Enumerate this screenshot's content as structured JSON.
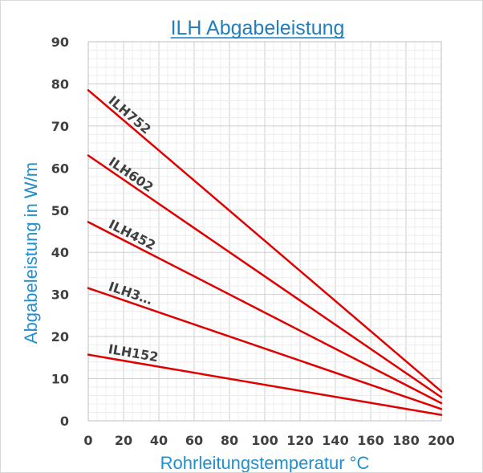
{
  "chart_data": {
    "type": "line",
    "title": "ILH Abgabeleistung",
    "xlabel": "Rohrleitungstemperatur °C",
    "ylabel": "Abgabeleistung in W/m",
    "xlim": [
      0,
      200
    ],
    "ylim": [
      0,
      90
    ],
    "x_ticks": [
      "0",
      "20",
      "40",
      "60",
      "80",
      "100",
      "120",
      "140",
      "160",
      "180",
      "200"
    ],
    "y_ticks": [
      "0",
      "10",
      "20",
      "30",
      "40",
      "50",
      "60",
      "70",
      "80",
      "90"
    ],
    "grid": true,
    "legend": "none",
    "series_color": "#e00000",
    "series": [
      {
        "name": "ILH752",
        "x": [
          0,
          200
        ],
        "y": [
          78.5,
          7.0
        ]
      },
      {
        "name": "ILH602",
        "x": [
          0,
          200
        ],
        "y": [
          63.0,
          5.6
        ]
      },
      {
        "name": "ILH452",
        "x": [
          0,
          200
        ],
        "y": [
          47.2,
          4.2
        ]
      },
      {
        "name": "ILH3…",
        "x": [
          0,
          200
        ],
        "y": [
          31.5,
          2.8
        ]
      },
      {
        "name": "ILH152",
        "x": [
          0,
          200
        ],
        "y": [
          15.7,
          1.4
        ]
      }
    ]
  }
}
